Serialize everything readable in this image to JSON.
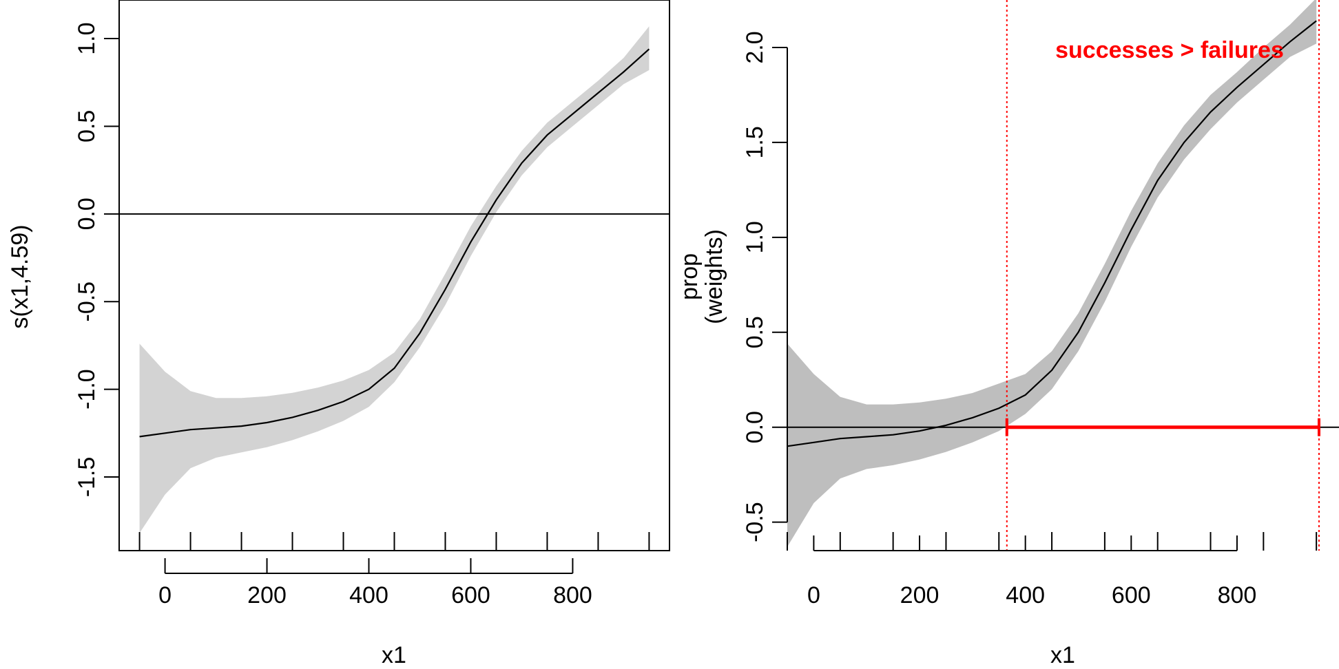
{
  "colors": {
    "curve": "#000000",
    "band_left": "#d3d3d3",
    "band_right": "#bebebe",
    "highlight": "#ff0000"
  },
  "chart_data": [
    {
      "type": "line",
      "title": "",
      "xlabel": "x1",
      "ylabel": "s(x1,4.59)",
      "xlim": [
        -90,
        990
      ],
      "ylim": [
        -1.92,
        1.22
      ],
      "x_ticks": [
        0,
        200,
        400,
        600,
        800
      ],
      "x_tick_labels": [
        "0",
        "200",
        "400",
        "600",
        "800"
      ],
      "y_ticks": [
        -1.5,
        -1.0,
        -0.5,
        0.0,
        0.5,
        1.0
      ],
      "y_tick_labels": [
        "-1.5",
        "-1.0",
        "-0.5",
        "0.0",
        "0.5",
        "1.0"
      ],
      "reference_line_y": 0,
      "boxed": true,
      "rug_x": [
        -50,
        50,
        150,
        250,
        350,
        450,
        550,
        650,
        750,
        850,
        950
      ],
      "fit": {
        "x": [
          -50,
          0,
          50,
          100,
          150,
          200,
          250,
          300,
          350,
          400,
          450,
          500,
          550,
          600,
          650,
          700,
          750,
          800,
          850,
          900,
          950
        ],
        "y": [
          -1.27,
          -1.25,
          -1.23,
          -1.22,
          -1.21,
          -1.19,
          -1.16,
          -1.12,
          -1.07,
          -1.0,
          -0.88,
          -0.68,
          -0.43,
          -0.16,
          0.08,
          0.29,
          0.45,
          0.57,
          0.69,
          0.81,
          0.94
        ],
        "lower": [
          -1.82,
          -1.6,
          -1.45,
          -1.39,
          -1.36,
          -1.33,
          -1.29,
          -1.24,
          -1.18,
          -1.1,
          -0.96,
          -0.76,
          -0.52,
          -0.24,
          0.01,
          0.22,
          0.38,
          0.5,
          0.62,
          0.74,
          0.82
        ],
        "upper": [
          -0.74,
          -0.9,
          -1.01,
          -1.05,
          -1.05,
          -1.04,
          -1.02,
          -0.99,
          -0.95,
          -0.89,
          -0.79,
          -0.6,
          -0.34,
          -0.07,
          0.16,
          0.36,
          0.52,
          0.64,
          0.76,
          0.89,
          1.07
        ]
      }
    },
    {
      "type": "line",
      "title": "",
      "xlabel": "x1",
      "ylabel": "prop",
      "ylabel2": "(weights)",
      "xlim": [
        -50,
        955
      ],
      "ylim": [
        -0.65,
        2.25
      ],
      "x_ticks": [
        0,
        200,
        400,
        600,
        800
      ],
      "x_tick_labels": [
        "0",
        "200",
        "400",
        "600",
        "800"
      ],
      "y_ticks": [
        -0.5,
        0.0,
        0.5,
        1.0,
        1.5,
        2.0
      ],
      "y_tick_labels": [
        "-0.5",
        "0.0",
        "0.5",
        "1.0",
        "1.5",
        "2.0"
      ],
      "reference_line_y": 0,
      "boxed": false,
      "rug_x": [
        -50,
        50,
        150,
        250,
        350,
        450,
        550,
        650,
        750,
        850,
        950
      ],
      "annotation": "successes > failures",
      "highlight_interval": [
        365,
        955
      ],
      "fit": {
        "x": [
          -50,
          0,
          50,
          100,
          150,
          200,
          250,
          300,
          350,
          400,
          450,
          500,
          550,
          600,
          650,
          700,
          750,
          800,
          850,
          900,
          950
        ],
        "y": [
          -0.1,
          -0.08,
          -0.06,
          -0.05,
          -0.04,
          -0.02,
          0.01,
          0.05,
          0.1,
          0.17,
          0.3,
          0.5,
          0.76,
          1.04,
          1.3,
          1.5,
          1.66,
          1.79,
          1.91,
          2.03,
          2.14
        ],
        "lower": [
          -0.63,
          -0.4,
          -0.27,
          -0.22,
          -0.2,
          -0.17,
          -0.13,
          -0.08,
          -0.02,
          0.07,
          0.2,
          0.4,
          0.66,
          0.95,
          1.21,
          1.41,
          1.57,
          1.71,
          1.83,
          1.95,
          2.02
        ],
        "upper": [
          0.44,
          0.28,
          0.16,
          0.12,
          0.12,
          0.13,
          0.15,
          0.18,
          0.23,
          0.28,
          0.4,
          0.6,
          0.86,
          1.14,
          1.39,
          1.59,
          1.75,
          1.87,
          2.0,
          2.12,
          2.26
        ]
      }
    }
  ]
}
